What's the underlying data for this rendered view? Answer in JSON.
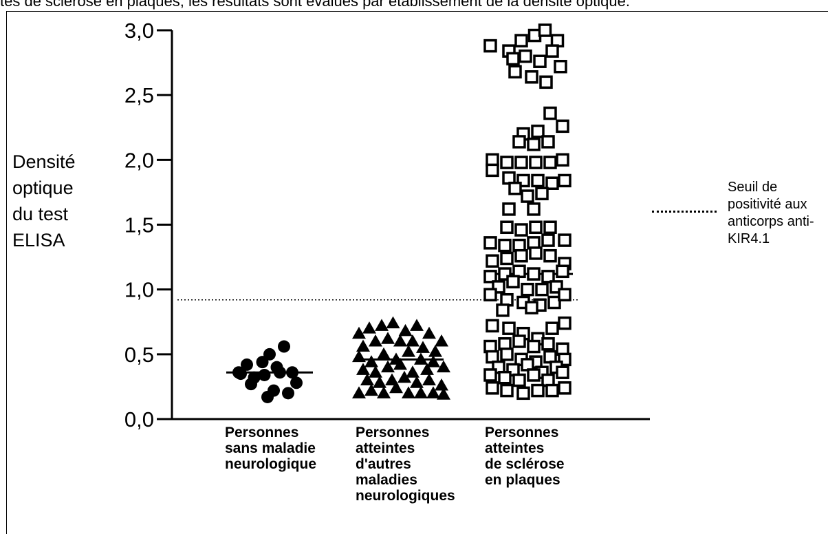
{
  "caption": "tes de sclérose en plaques, les résultats sont évalués par établissement de la densité optique.",
  "chart_data": {
    "type": "scatter",
    "ylabel_lines": [
      "Densité",
      "optique",
      "du test",
      "ELISA"
    ],
    "ylim": [
      0,
      3.0
    ],
    "yticks": [
      "0,0",
      "0,5",
      "1,0",
      "1,5",
      "2,0",
      "2,5",
      "3,0"
    ],
    "threshold": 0.92,
    "legend_lines": [
      "Seuil de",
      "positivité aux",
      "anticorps anti-",
      "KIR4.1"
    ],
    "legend_placement": "right",
    "groups": [
      {
        "label_lines": [
          "Personnes",
          "sans maladie",
          "neurologique"
        ],
        "marker": "circle",
        "median": 0.36,
        "points": [
          [
            -0.3,
            0.36
          ],
          [
            -0.22,
            0.42
          ],
          [
            -0.15,
            0.32
          ],
          [
            -0.07,
            0.44
          ],
          [
            0,
            0.5
          ],
          [
            0.07,
            0.4
          ],
          [
            0.14,
            0.56
          ],
          [
            0.22,
            0.36
          ],
          [
            -0.18,
            0.27
          ],
          [
            -0.05,
            0.34
          ],
          [
            0.1,
            0.36
          ],
          [
            0.26,
            0.28
          ],
          [
            0.04,
            0.22
          ],
          [
            -0.02,
            0.17
          ],
          [
            0.18,
            0.2
          ],
          [
            -0.28,
            0.35
          ]
        ]
      },
      {
        "label_lines": [
          "Personnes",
          "atteintes",
          "d'autres",
          "maladies",
          "neurologiques"
        ],
        "marker": "triangle",
        "median": 0.46,
        "points": [
          [
            -0.4,
            0.66
          ],
          [
            -0.3,
            0.7
          ],
          [
            -0.18,
            0.72
          ],
          [
            -0.07,
            0.74
          ],
          [
            0.05,
            0.68
          ],
          [
            0.16,
            0.72
          ],
          [
            0.28,
            0.66
          ],
          [
            0.4,
            0.6
          ],
          [
            -0.36,
            0.56
          ],
          [
            -0.24,
            0.6
          ],
          [
            -0.12,
            0.62
          ],
          [
            0,
            0.6
          ],
          [
            0.12,
            0.6
          ],
          [
            0.22,
            0.55
          ],
          [
            0.34,
            0.52
          ],
          [
            -0.4,
            0.48
          ],
          [
            -0.28,
            0.44
          ],
          [
            -0.16,
            0.5
          ],
          [
            -0.04,
            0.46
          ],
          [
            0.08,
            0.52
          ],
          [
            0.2,
            0.46
          ],
          [
            0.32,
            0.44
          ],
          [
            0.42,
            0.4
          ],
          [
            -0.36,
            0.38
          ],
          [
            -0.24,
            0.36
          ],
          [
            -0.12,
            0.4
          ],
          [
            0,
            0.42
          ],
          [
            0.12,
            0.36
          ],
          [
            0.26,
            0.38
          ],
          [
            -0.32,
            0.3
          ],
          [
            -0.2,
            0.28
          ],
          [
            -0.08,
            0.3
          ],
          [
            0.04,
            0.32
          ],
          [
            0.16,
            0.28
          ],
          [
            0.28,
            0.3
          ],
          [
            0.4,
            0.26
          ],
          [
            -0.4,
            0.2
          ],
          [
            -0.28,
            0.22
          ],
          [
            -0.16,
            0.2
          ],
          [
            -0.04,
            0.24
          ],
          [
            0.08,
            0.2
          ],
          [
            0.2,
            0.2
          ],
          [
            0.32,
            0.2
          ],
          [
            0.42,
            0.19
          ]
        ]
      },
      {
        "label_lines": [
          "Personnes",
          "atteintes",
          "de sclérose",
          "en plaques"
        ],
        "marker": "square",
        "median": 1.12,
        "points": [
          [
            -0.38,
            2.88
          ],
          [
            -0.2,
            2.84
          ],
          [
            -0.08,
            2.92
          ],
          [
            0.05,
            2.96
          ],
          [
            0.15,
            3.0
          ],
          [
            0.27,
            2.92
          ],
          [
            -0.16,
            2.78
          ],
          [
            -0.04,
            2.8
          ],
          [
            0.1,
            2.76
          ],
          [
            0.22,
            2.84
          ],
          [
            -0.14,
            2.68
          ],
          [
            0.02,
            2.64
          ],
          [
            0.16,
            2.6
          ],
          [
            0.3,
            2.72
          ],
          [
            -0.06,
            2.2
          ],
          [
            0.08,
            2.22
          ],
          [
            0.2,
            2.36
          ],
          [
            0.32,
            2.26
          ],
          [
            -0.1,
            2.14
          ],
          [
            0.04,
            2.12
          ],
          [
            0.18,
            2.14
          ],
          [
            -0.36,
            2.0
          ],
          [
            -0.22,
            1.98
          ],
          [
            -0.08,
            1.98
          ],
          [
            0.06,
            1.98
          ],
          [
            0.2,
            1.98
          ],
          [
            0.32,
            2.0
          ],
          [
            -0.36,
            1.92
          ],
          [
            -0.2,
            1.86
          ],
          [
            -0.06,
            1.84
          ],
          [
            0.08,
            1.84
          ],
          [
            0.22,
            1.82
          ],
          [
            0.34,
            1.84
          ],
          [
            -0.14,
            1.78
          ],
          [
            -0.02,
            1.72
          ],
          [
            0.12,
            1.74
          ],
          [
            -0.2,
            1.62
          ],
          [
            0.04,
            1.62
          ],
          [
            -0.22,
            1.48
          ],
          [
            -0.08,
            1.46
          ],
          [
            0.06,
            1.48
          ],
          [
            0.2,
            1.48
          ],
          [
            -0.38,
            1.36
          ],
          [
            -0.24,
            1.34
          ],
          [
            -0.1,
            1.34
          ],
          [
            0.04,
            1.36
          ],
          [
            0.18,
            1.38
          ],
          [
            0.34,
            1.38
          ],
          [
            -0.36,
            1.22
          ],
          [
            -0.22,
            1.24
          ],
          [
            -0.08,
            1.26
          ],
          [
            0.06,
            1.28
          ],
          [
            0.2,
            1.26
          ],
          [
            0.34,
            1.2
          ],
          [
            -0.38,
            1.1
          ],
          [
            -0.24,
            1.12
          ],
          [
            -0.1,
            1.14
          ],
          [
            0.04,
            1.12
          ],
          [
            0.18,
            1.1
          ],
          [
            0.32,
            1.14
          ],
          [
            -0.3,
            1.02
          ],
          [
            -0.16,
            1.06
          ],
          [
            -0.02,
            1.0
          ],
          [
            0.12,
            1.0
          ],
          [
            0.26,
            1.02
          ],
          [
            -0.38,
            0.96
          ],
          [
            -0.22,
            0.92
          ],
          [
            -0.06,
            0.9
          ],
          [
            0.1,
            0.88
          ],
          [
            0.24,
            0.9
          ],
          [
            0.34,
            0.96
          ],
          [
            -0.26,
            0.84
          ],
          [
            0.02,
            0.86
          ],
          [
            -0.36,
            0.72
          ],
          [
            -0.2,
            0.7
          ],
          [
            -0.06,
            0.66
          ],
          [
            0.08,
            0.62
          ],
          [
            0.22,
            0.7
          ],
          [
            0.34,
            0.74
          ],
          [
            -0.38,
            0.56
          ],
          [
            -0.24,
            0.58
          ],
          [
            -0.1,
            0.6
          ],
          [
            0.04,
            0.56
          ],
          [
            0.18,
            0.58
          ],
          [
            0.32,
            0.54
          ],
          [
            -0.36,
            0.48
          ],
          [
            -0.22,
            0.5
          ],
          [
            -0.08,
            0.46
          ],
          [
            0.06,
            0.44
          ],
          [
            0.2,
            0.48
          ],
          [
            0.34,
            0.46
          ],
          [
            -0.3,
            0.4
          ],
          [
            -0.16,
            0.38
          ],
          [
            -0.02,
            0.42
          ],
          [
            0.12,
            0.36
          ],
          [
            0.26,
            0.4
          ],
          [
            -0.38,
            0.34
          ],
          [
            -0.24,
            0.32
          ],
          [
            -0.1,
            0.3
          ],
          [
            0.04,
            0.34
          ],
          [
            0.18,
            0.3
          ],
          [
            0.32,
            0.36
          ],
          [
            -0.36,
            0.24
          ],
          [
            -0.22,
            0.22
          ],
          [
            -0.06,
            0.2
          ],
          [
            0.08,
            0.22
          ],
          [
            0.22,
            0.22
          ],
          [
            0.34,
            0.24
          ]
        ]
      }
    ]
  }
}
